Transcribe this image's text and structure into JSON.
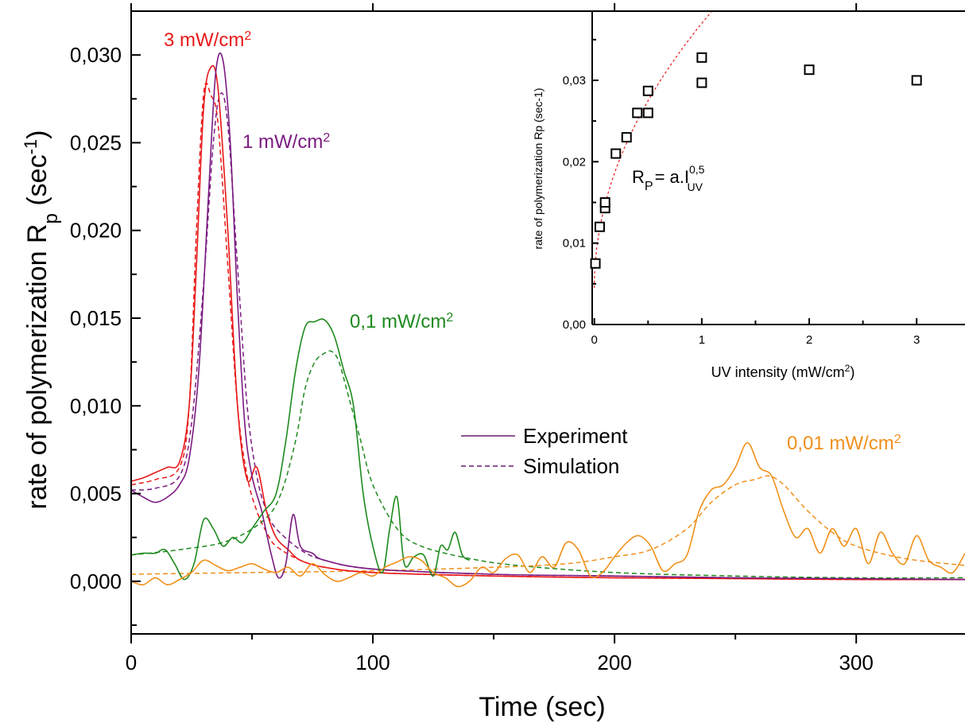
{
  "chart_data": {
    "type": "line",
    "xlabel": "Time (sec)",
    "ylabel": {
      "main": "rate of polymerization R",
      "sub": "p",
      "unit_open": " (sec",
      "unit_sup": "-1",
      "unit_close": ")"
    },
    "xlim": [
      0,
      345
    ],
    "ylim": [
      -0.003,
      0.0325
    ],
    "x_ticks": [
      0,
      100,
      200,
      300
    ],
    "y_ticks": [
      0.0,
      0.005,
      0.01,
      0.015,
      0.02,
      0.025,
      0.03
    ],
    "x_tick_labels": [
      "0",
      "100",
      "200",
      "300"
    ],
    "y_tick_labels": [
      "0,000",
      "0,005",
      "0,010",
      "0,015",
      "0,020",
      "0,025",
      "0,030"
    ],
    "legend": {
      "position": "center-right",
      "entries": [
        {
          "label": "Experiment",
          "style": "solid",
          "color": "#6a1a6e"
        },
        {
          "label": "Simulation",
          "style": "dashed",
          "color": "#6a1a6e"
        }
      ]
    },
    "series": [
      {
        "name": "3 mW/cm2",
        "label_main": "3 mW/cm",
        "label_sup": "2",
        "color": "#e81818",
        "kind": "experiment",
        "x": [
          0,
          5,
          10,
          15,
          20,
          24,
          27,
          30,
          33,
          36,
          40,
          44,
          48,
          52,
          56,
          60,
          65,
          70,
          80,
          100,
          150,
          200,
          250,
          300,
          345
        ],
        "y": [
          0.0057,
          0.0059,
          0.0062,
          0.0065,
          0.0068,
          0.01,
          0.018,
          0.027,
          0.0293,
          0.028,
          0.02,
          0.01,
          0.0058,
          0.0065,
          0.004,
          0.0025,
          0.0018,
          0.0012,
          0.0008,
          0.0005,
          0.0003,
          0.0002,
          0.00015,
          0.0001,
          0.0001
        ]
      },
      {
        "name": "3 mW/cm2 simulation",
        "color": "#e81818",
        "kind": "simulation",
        "x": [
          0,
          10,
          20,
          24,
          27,
          30,
          33,
          36,
          40,
          44,
          48,
          52,
          56,
          60,
          70,
          80,
          100,
          150,
          200,
          250,
          300,
          345
        ],
        "y": [
          0.0055,
          0.0058,
          0.0065,
          0.01,
          0.02,
          0.0278,
          0.0277,
          0.026,
          0.018,
          0.01,
          0.006,
          0.004,
          0.0028,
          0.002,
          0.0012,
          0.0008,
          0.0005,
          0.0003,
          0.0002,
          0.00015,
          0.0001,
          0.0001
        ]
      },
      {
        "name": "1 mW/cm2",
        "label_main": "1 mW/cm",
        "label_sup": "2",
        "color": "#7a1a80",
        "kind": "experiment",
        "x": [
          0,
          5,
          10,
          15,
          20,
          24,
          28,
          32,
          35,
          38,
          41,
          44,
          47,
          50,
          54,
          58,
          61,
          64,
          67,
          70,
          75,
          80,
          100,
          150,
          200,
          250,
          300,
          345
        ],
        "y": [
          0.0052,
          0.0048,
          0.0045,
          0.0048,
          0.0055,
          0.007,
          0.012,
          0.022,
          0.029,
          0.0297,
          0.025,
          0.016,
          0.009,
          0.006,
          0.004,
          0.0015,
          0.0002,
          0.001,
          0.0038,
          0.002,
          0.0016,
          0.0012,
          0.0007,
          0.0004,
          0.0003,
          0.0002,
          0.00015,
          0.0001
        ]
      },
      {
        "name": "1 mW/cm2 simulation",
        "color": "#7a1a80",
        "kind": "simulation",
        "x": [
          0,
          10,
          20,
          25,
          30,
          34,
          37,
          40,
          44,
          48,
          52,
          56,
          60,
          70,
          80,
          100,
          150,
          200,
          250,
          300,
          345
        ],
        "y": [
          0.0052,
          0.0053,
          0.006,
          0.009,
          0.017,
          0.025,
          0.0278,
          0.026,
          0.018,
          0.01,
          0.006,
          0.004,
          0.003,
          0.0018,
          0.0012,
          0.0007,
          0.0004,
          0.0003,
          0.0002,
          0.00015,
          0.0001
        ]
      },
      {
        "name": "0,1 mW/cm2",
        "label_main": "0,1 mW/cm",
        "label_sup": "2",
        "color": "#1e8a1e",
        "kind": "experiment",
        "x": [
          0,
          5,
          10,
          14,
          18,
          22,
          26,
          30,
          34,
          38,
          42,
          46,
          50,
          55,
          60,
          64,
          68,
          72,
          76,
          80,
          84,
          88,
          92,
          96,
          100,
          104,
          107,
          110,
          113,
          117,
          121,
          125,
          128,
          131,
          134,
          137,
          140
        ],
        "y": [
          0.0015,
          0.0016,
          0.0016,
          0.0018,
          0.001,
          0.0001,
          0.001,
          0.0035,
          0.003,
          0.002,
          0.0025,
          0.0022,
          0.003,
          0.004,
          0.005,
          0.008,
          0.012,
          0.0145,
          0.0148,
          0.0149,
          0.014,
          0.012,
          0.01,
          0.005,
          0.002,
          0.0005,
          0.003,
          0.0048,
          0.001,
          0.0014,
          0.0015,
          0.0003,
          0.002,
          0.0018,
          0.0028,
          0.0015,
          0.0012
        ]
      },
      {
        "name": "0,1 mW/cm2 simulation",
        "color": "#1e8a1e",
        "kind": "simulation",
        "x": [
          0,
          20,
          40,
          55,
          62,
          68,
          72,
          76,
          80,
          83,
          86,
          90,
          95,
          100,
          110,
          120,
          140,
          160,
          200,
          250,
          300,
          345
        ],
        "y": [
          0.0015,
          0.0018,
          0.0023,
          0.0035,
          0.005,
          0.008,
          0.011,
          0.0125,
          0.013,
          0.0131,
          0.0125,
          0.0105,
          0.008,
          0.0055,
          0.003,
          0.002,
          0.0013,
          0.0009,
          0.0005,
          0.0003,
          0.0002,
          0.0002
        ]
      },
      {
        "name": "0,01 mW/cm2",
        "label_main": "0,01 mW/cm",
        "label_sup": "2",
        "color": "#f0901a",
        "kind": "experiment",
        "x": [
          0,
          5,
          10,
          15,
          20,
          25,
          30,
          35,
          40,
          45,
          50,
          55,
          60,
          65,
          70,
          75,
          80,
          85,
          90,
          95,
          100,
          105,
          110,
          115,
          120,
          125,
          130,
          135,
          140,
          145,
          150,
          155,
          160,
          165,
          170,
          175,
          180,
          185,
          190,
          195,
          200,
          205,
          210,
          215,
          220,
          225,
          230,
          235,
          240,
          245,
          250,
          255,
          260,
          265,
          270,
          275,
          280,
          285,
          290,
          295,
          300,
          305,
          310,
          315,
          320,
          325,
          330,
          335,
          340,
          345
        ],
        "y": [
          0.0,
          -0.0002,
          0.0002,
          -0.0002,
          0.0001,
          0.0005,
          0.0012,
          0.0009,
          0.0006,
          0.0008,
          0.001,
          0.0007,
          0.0005,
          0.0008,
          0.0003,
          0.001,
          0.0004,
          0.0,
          0.0002,
          0.0005,
          0.0003,
          0.0008,
          0.0011,
          0.0014,
          0.0012,
          0.0005,
          0.0002,
          -0.0003,
          0.0,
          0.0008,
          0.0005,
          0.0013,
          0.0015,
          0.0005,
          0.0014,
          0.0008,
          0.0022,
          0.0018,
          0.0003,
          0.0005,
          0.0014,
          0.0022,
          0.0026,
          0.002,
          0.0006,
          0.001,
          0.0015,
          0.004,
          0.0052,
          0.0055,
          0.0065,
          0.0079,
          0.0065,
          0.006,
          0.004,
          0.0025,
          0.003,
          0.0016,
          0.003,
          0.002,
          0.003,
          0.001,
          0.0028,
          0.0016,
          0.001,
          0.0026,
          0.0012,
          0.0008,
          0.0005,
          0.0016
        ]
      },
      {
        "name": "0,01 mW/cm2 simulation",
        "color": "#f0901a",
        "kind": "simulation",
        "x": [
          0,
          50,
          100,
          150,
          180,
          200,
          215,
          230,
          240,
          250,
          258,
          264,
          270,
          280,
          290,
          300,
          320,
          345
        ],
        "y": [
          0.0004,
          0.0005,
          0.0006,
          0.0008,
          0.001,
          0.0014,
          0.0018,
          0.003,
          0.0045,
          0.0055,
          0.0058,
          0.006,
          0.0055,
          0.004,
          0.0028,
          0.002,
          0.0013,
          0.0009
        ]
      }
    ],
    "inset": {
      "type": "scatter",
      "xlabel_main": "UV intensity (mW/cm",
      "xlabel_sup": "2",
      "xlabel_close": ")",
      "ylabel": "rate of polymerization Rp (sec-1)",
      "xlim": [
        -0.02,
        3.45
      ],
      "ylim": [
        0.0,
        0.0385
      ],
      "x_ticks": [
        0,
        1,
        2,
        3
      ],
      "x_tick_labels": [
        "0",
        "1",
        "2",
        "3"
      ],
      "y_ticks": [
        0.0,
        0.01,
        0.02,
        0.03
      ],
      "y_tick_labels": [
        "0,00",
        "0,01",
        "0,02",
        "0,03"
      ],
      "points": [
        {
          "x": 0.01,
          "y": 0.0075
        },
        {
          "x": 0.05,
          "y": 0.012
        },
        {
          "x": 0.1,
          "y": 0.0143
        },
        {
          "x": 0.1,
          "y": 0.015
        },
        {
          "x": 0.2,
          "y": 0.021
        },
        {
          "x": 0.3,
          "y": 0.023
        },
        {
          "x": 0.4,
          "y": 0.026
        },
        {
          "x": 0.5,
          "y": 0.026
        },
        {
          "x": 0.5,
          "y": 0.0287
        },
        {
          "x": 1,
          "y": 0.0297
        },
        {
          "x": 1,
          "y": 0.0328
        },
        {
          "x": 2,
          "y": 0.0313
        },
        {
          "x": 3,
          "y": 0.03
        }
      ],
      "fit": {
        "color": "#e81818",
        "style": "dashed",
        "exponent": 0.5,
        "coefficient": 0.0325,
        "offset": 0.0045
      },
      "annotation": {
        "base": "R",
        "base_sub": "P",
        "middle": "= a.I",
        "sup": "0,5",
        "sub": "UV"
      }
    }
  }
}
